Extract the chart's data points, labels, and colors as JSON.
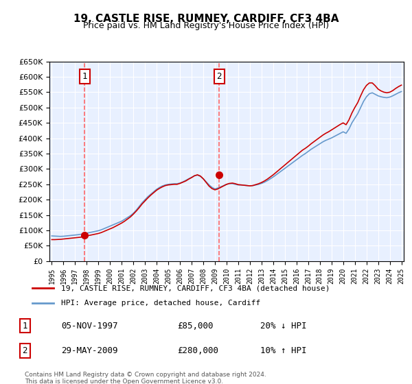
{
  "title": "19, CASTLE RISE, RUMNEY, CARDIFF, CF3 4BA",
  "subtitle": "Price paid vs. HM Land Registry's House Price Index (HPI)",
  "legend_line1": "19, CASTLE RISE, RUMNEY, CARDIFF, CF3 4BA (detached house)",
  "legend_line2": "HPI: Average price, detached house, Cardiff",
  "sale1_date": "1997-11-05",
  "sale1_price": 85000,
  "sale1_label": "05-NOV-1997",
  "sale1_hpi_note": "20% ↓ HPI",
  "sale2_date": "2009-05-29",
  "sale2_price": 280000,
  "sale2_label": "29-MAY-2009",
  "sale2_hpi_note": "10% ↑ HPI",
  "footnote": "Contains HM Land Registry data © Crown copyright and database right 2024.\nThis data is licensed under the Open Government Licence v3.0.",
  "hpi_color": "#6699cc",
  "price_color": "#cc0000",
  "vline_color": "#ff6666",
  "bg_color": "#e8f0ff",
  "ylim": [
    0,
    650000
  ],
  "yticks": [
    0,
    50000,
    100000,
    150000,
    200000,
    250000,
    300000,
    350000,
    400000,
    450000,
    500000,
    550000,
    600000,
    650000
  ],
  "hpi_data": {
    "years": [
      1995.0,
      1995.25,
      1995.5,
      1995.75,
      1996.0,
      1996.25,
      1996.5,
      1996.75,
      1997.0,
      1997.25,
      1997.5,
      1997.75,
      1998.0,
      1998.25,
      1998.5,
      1998.75,
      1999.0,
      1999.25,
      1999.5,
      1999.75,
      2000.0,
      2000.25,
      2000.5,
      2000.75,
      2001.0,
      2001.25,
      2001.5,
      2001.75,
      2002.0,
      2002.25,
      2002.5,
      2002.75,
      2003.0,
      2003.25,
      2003.5,
      2003.75,
      2004.0,
      2004.25,
      2004.5,
      2004.75,
      2005.0,
      2005.25,
      2005.5,
      2005.75,
      2006.0,
      2006.25,
      2006.5,
      2006.75,
      2007.0,
      2007.25,
      2007.5,
      2007.75,
      2008.0,
      2008.25,
      2008.5,
      2008.75,
      2009.0,
      2009.25,
      2009.5,
      2009.75,
      2010.0,
      2010.25,
      2010.5,
      2010.75,
      2011.0,
      2011.25,
      2011.5,
      2011.75,
      2012.0,
      2012.25,
      2012.5,
      2012.75,
      2013.0,
      2013.25,
      2013.5,
      2013.75,
      2014.0,
      2014.25,
      2014.5,
      2014.75,
      2015.0,
      2015.25,
      2015.5,
      2015.75,
      2016.0,
      2016.25,
      2016.5,
      2016.75,
      2017.0,
      2017.25,
      2017.5,
      2017.75,
      2018.0,
      2018.25,
      2018.5,
      2018.75,
      2019.0,
      2019.25,
      2019.5,
      2019.75,
      2020.0,
      2020.25,
      2020.5,
      2020.75,
      2021.0,
      2021.25,
      2021.5,
      2021.75,
      2022.0,
      2022.25,
      2022.5,
      2022.75,
      2023.0,
      2023.25,
      2023.5,
      2023.75,
      2024.0,
      2024.25,
      2024.5,
      2024.75,
      2025.0
    ],
    "values": [
      82000,
      81500,
      81000,
      80500,
      81000,
      82000,
      83000,
      84000,
      85000,
      86000,
      87500,
      89000,
      91000,
      93000,
      95000,
      97000,
      99000,
      102000,
      106000,
      110000,
      114000,
      118000,
      122000,
      126000,
      130000,
      136000,
      142000,
      148000,
      156000,
      166000,
      178000,
      190000,
      200000,
      210000,
      218000,
      226000,
      234000,
      240000,
      245000,
      248000,
      250000,
      251000,
      252000,
      252000,
      254000,
      258000,
      263000,
      268000,
      273000,
      278000,
      280000,
      276000,
      268000,
      258000,
      248000,
      240000,
      235000,
      238000,
      242000,
      246000,
      250000,
      252000,
      252000,
      250000,
      248000,
      248000,
      247000,
      246000,
      245000,
      246000,
      248000,
      250000,
      253000,
      257000,
      262000,
      268000,
      274000,
      281000,
      288000,
      295000,
      302000,
      309000,
      316000,
      323000,
      330000,
      337000,
      344000,
      350000,
      357000,
      364000,
      370000,
      376000,
      382000,
      388000,
      393000,
      397000,
      401000,
      406000,
      411000,
      416000,
      421000,
      416000,
      430000,
      450000,
      465000,
      480000,
      500000,
      520000,
      535000,
      545000,
      548000,
      543000,
      538000,
      535000,
      533000,
      532000,
      534000,
      538000,
      543000,
      548000,
      552000
    ]
  },
  "price_data": {
    "years": [
      1995.0,
      1995.25,
      1995.5,
      1995.75,
      1996.0,
      1996.25,
      1996.5,
      1996.75,
      1997.0,
      1997.25,
      1997.5,
      1997.75,
      1998.0,
      1998.25,
      1998.5,
      1998.75,
      1999.0,
      1999.25,
      1999.5,
      1999.75,
      2000.0,
      2000.25,
      2000.5,
      2000.75,
      2001.0,
      2001.25,
      2001.5,
      2001.75,
      2002.0,
      2002.25,
      2002.5,
      2002.75,
      2003.0,
      2003.25,
      2003.5,
      2003.75,
      2004.0,
      2004.25,
      2004.5,
      2004.75,
      2005.0,
      2005.25,
      2005.5,
      2005.75,
      2006.0,
      2006.25,
      2006.5,
      2006.75,
      2007.0,
      2007.25,
      2007.5,
      2007.75,
      2008.0,
      2008.25,
      2008.5,
      2008.75,
      2009.0,
      2009.25,
      2009.5,
      2009.75,
      2010.0,
      2010.25,
      2010.5,
      2010.75,
      2011.0,
      2011.25,
      2011.5,
      2011.75,
      2012.0,
      2012.25,
      2012.5,
      2012.75,
      2013.0,
      2013.25,
      2013.5,
      2013.75,
      2014.0,
      2014.25,
      2014.5,
      2014.75,
      2015.0,
      2015.25,
      2015.5,
      2015.75,
      2016.0,
      2016.25,
      2016.5,
      2016.75,
      2017.0,
      2017.25,
      2017.5,
      2017.75,
      2018.0,
      2018.25,
      2018.5,
      2018.75,
      2019.0,
      2019.25,
      2019.5,
      2019.75,
      2020.0,
      2020.25,
      2020.5,
      2020.75,
      2021.0,
      2021.25,
      2021.5,
      2021.75,
      2022.0,
      2022.25,
      2022.5,
      2022.75,
      2023.0,
      2023.25,
      2023.5,
      2023.75,
      2024.0,
      2024.25,
      2024.5,
      2024.75,
      2025.0
    ],
    "values": [
      70000,
      70000,
      70500,
      71000,
      72000,
      73000,
      74000,
      75000,
      76000,
      77000,
      78000,
      80000,
      82000,
      84000,
      86000,
      88000,
      90000,
      93000,
      97000,
      101000,
      105000,
      109000,
      114000,
      119000,
      124000,
      130000,
      137000,
      144000,
      153000,
      163000,
      174000,
      186000,
      196000,
      206000,
      215000,
      223000,
      231000,
      237000,
      242000,
      246000,
      248000,
      249000,
      250000,
      250000,
      253000,
      257000,
      261000,
      267000,
      272000,
      278000,
      281000,
      277000,
      268000,
      256000,
      244000,
      236000,
      232000,
      235000,
      240000,
      245000,
      250000,
      253000,
      254000,
      252000,
      249000,
      248000,
      247000,
      246000,
      245000,
      246000,
      249000,
      252000,
      256000,
      261000,
      267000,
      274000,
      281000,
      289000,
      297000,
      305000,
      313000,
      321000,
      329000,
      337000,
      345000,
      353000,
      361000,
      367000,
      374000,
      382000,
      389000,
      396000,
      403000,
      410000,
      416000,
      421000,
      427000,
      433000,
      439000,
      445000,
      450000,
      444000,
      460000,
      482000,
      500000,
      516000,
      538000,
      558000,
      572000,
      580000,
      580000,
      571000,
      560000,
      554000,
      550000,
      548000,
      550000,
      555000,
      562000,
      568000,
      573000
    ]
  }
}
